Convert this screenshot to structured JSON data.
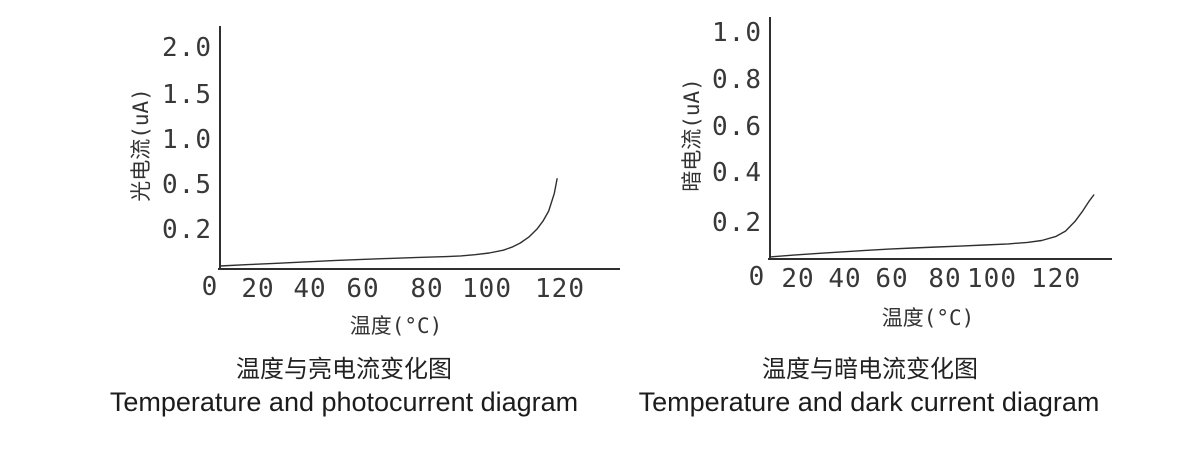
{
  "page": {
    "background_color": "#ffffff",
    "line_color": "#2f2f2f",
    "text_color": "#383838"
  },
  "chart_data": [
    {
      "type": "line",
      "title": "温度与亮电流变化图",
      "subtitle": "Temperature and photocurrent diagram",
      "xlabel": "温度(°C)",
      "ylabel": "光电流(uA)",
      "x_tick_labels": [
        "0",
        "20",
        "40",
        "60",
        "80",
        "100",
        "120"
      ],
      "y_tick_labels": [
        "2.0",
        "1.5",
        "1.0",
        "0.5",
        "0.2"
      ],
      "xlim": [
        0,
        140
      ],
      "ylim": [
        0,
        2.2
      ],
      "grid": false,
      "legend": null,
      "series": [
        {
          "name": "photocurrent",
          "x": [
            0,
            10,
            20,
            30,
            40,
            50,
            60,
            70,
            80,
            85,
            90,
            95,
            100,
            103,
            106,
            109,
            112,
            114,
            116,
            118,
            119
          ],
          "y": [
            0.018,
            0.026,
            0.034,
            0.042,
            0.05,
            0.057,
            0.063,
            0.069,
            0.074,
            0.078,
            0.085,
            0.095,
            0.112,
            0.13,
            0.155,
            0.19,
            0.24,
            0.285,
            0.345,
            0.45,
            0.54
          ]
        }
      ]
    },
    {
      "type": "line",
      "title": "温度与暗电流变化图",
      "subtitle": "Temperature and dark current diagram",
      "xlabel": "温度(°C)",
      "ylabel": "暗电流(uA)",
      "x_tick_labels": [
        "0",
        "20",
        "40",
        "60",
        "80",
        "100",
        "120"
      ],
      "y_tick_labels": [
        "1.0",
        "0.8",
        "0.6",
        "0.4",
        "0.2"
      ],
      "xlim": [
        0,
        140
      ],
      "ylim": [
        0,
        1.1
      ],
      "grid": false,
      "legend": null,
      "series": [
        {
          "name": "dark-current",
          "x": [
            0,
            10,
            20,
            30,
            40,
            50,
            60,
            70,
            80,
            90,
            100,
            108,
            114,
            120,
            124,
            128,
            131,
            134,
            136
          ],
          "y": [
            0.01,
            0.018,
            0.026,
            0.033,
            0.04,
            0.046,
            0.051,
            0.056,
            0.06,
            0.065,
            0.07,
            0.077,
            0.086,
            0.105,
            0.13,
            0.175,
            0.22,
            0.27,
            0.3
          ]
        }
      ]
    }
  ]
}
